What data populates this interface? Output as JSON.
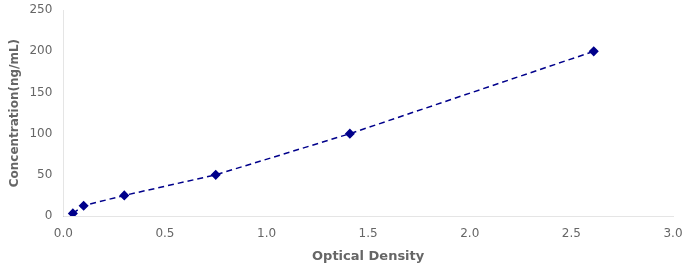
{
  "chart_data": {
    "type": "line",
    "x": [
      0.047,
      0.1,
      0.3,
      0.75,
      1.41,
      2.61
    ],
    "values": [
      3.125,
      12.5,
      25,
      50,
      100,
      200
    ],
    "color": "#00008B",
    "marker": "diamond",
    "line_style": "dashed",
    "xlabel": "Optical Density",
    "ylabel": "Concentration(ng/mL)",
    "xlim": [
      0,
      3
    ],
    "ylim": [
      0,
      250
    ],
    "xticks": [
      {
        "value": 0,
        "label": "0.0"
      },
      {
        "value": 0.5,
        "label": "0.5"
      },
      {
        "value": 1,
        "label": "1.0"
      },
      {
        "value": 1.5,
        "label": "1.5"
      },
      {
        "value": 2,
        "label": "2.0"
      },
      {
        "value": 2.5,
        "label": "2.5"
      },
      {
        "value": 3,
        "label": "3.0"
      }
    ],
    "yticks": [
      0,
      50,
      100,
      150,
      200,
      250
    ],
    "grid": false
  }
}
